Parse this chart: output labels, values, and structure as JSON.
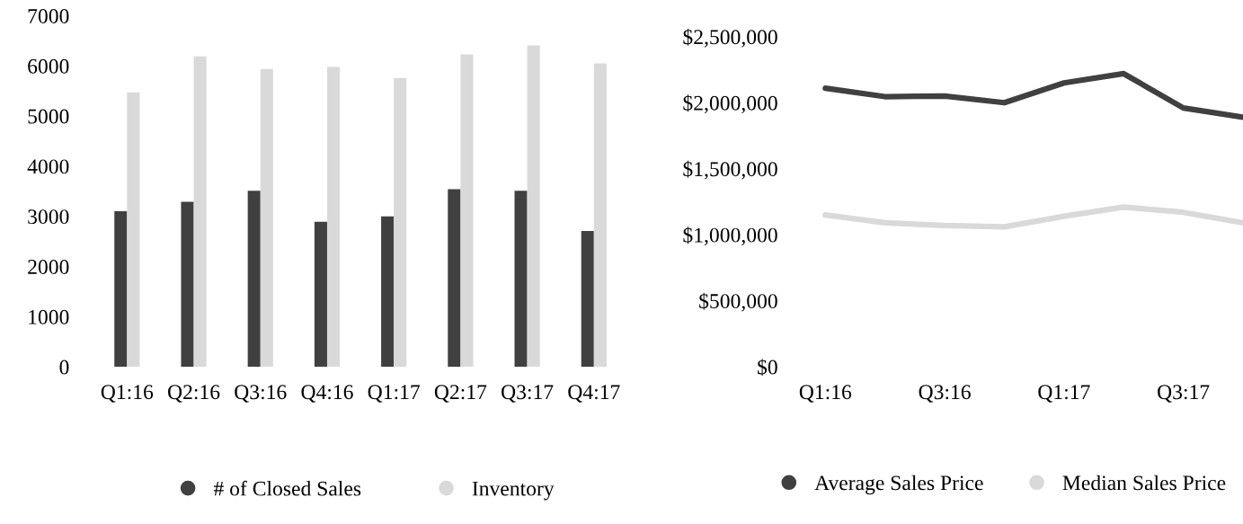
{
  "chart_data": [
    {
      "type": "bar",
      "categories": [
        "Q1:16",
        "Q2:16",
        "Q3:16",
        "Q4:16",
        "Q1:17",
        "Q2:17",
        "Q3:17",
        "Q4:17"
      ],
      "series": [
        {
          "name": "# of Closed Sales",
          "color": "#404040",
          "values": [
            3100,
            3290,
            3510,
            2890,
            3000,
            3540,
            3510,
            2710
          ]
        },
        {
          "name": "Inventory",
          "color": "#d9d9d9",
          "values": [
            5470,
            6190,
            5940,
            5980,
            5760,
            6230,
            6410,
            6050
          ]
        }
      ],
      "ylim": [
        0,
        7000
      ],
      "yticks": [
        0,
        1000,
        2000,
        3000,
        4000,
        5000,
        6000,
        7000
      ],
      "grid": false,
      "legend": "bottom"
    },
    {
      "type": "line",
      "categories": [
        "Q1:16",
        null,
        "Q3:16",
        null,
        "Q1:17",
        null,
        "Q3:17",
        null
      ],
      "series": [
        {
          "name": "Average Sales Price",
          "color": "#404040",
          "values": [
            2110000,
            2046000,
            2050000,
            2000000,
            2150000,
            2220000,
            1960000,
            1890000
          ]
        },
        {
          "name": "Median Sales Price",
          "color": "#d9d9d9",
          "values": [
            1150000,
            1090000,
            1070000,
            1060000,
            1140000,
            1210000,
            1170000,
            1090000
          ]
        }
      ],
      "ylim": [
        0,
        2500000
      ],
      "yticks": [
        {
          "value": 0,
          "label": "$0"
        },
        {
          "value": 500000,
          "label": "$500,000"
        },
        {
          "value": 1000000,
          "label": "$1,000,000"
        },
        {
          "value": 1500000,
          "label": "$1,500,000"
        },
        {
          "value": 2000000,
          "label": "$2,000,000"
        },
        {
          "value": 2500000,
          "label": "$2,500,000"
        }
      ],
      "grid": false,
      "legend": "bottom"
    }
  ]
}
